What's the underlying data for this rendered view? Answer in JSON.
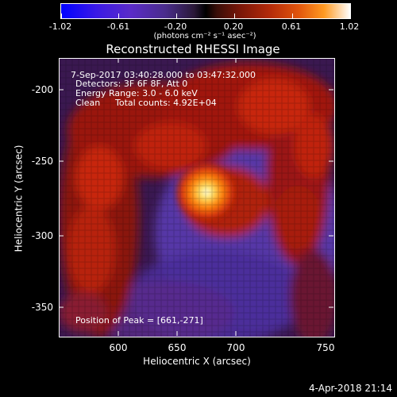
{
  "colorbar": {
    "tick_labels": [
      "-1.02",
      "-0.61",
      "-0.20",
      "0.20",
      "0.61",
      "1.02"
    ],
    "units_label": "(photons cm⁻² s⁻¹ asec⁻²)"
  },
  "plot": {
    "title": "Reconstructed RHESSI Image",
    "annotations": {
      "time_range": "7-Sep-2017 03:40:28.000 to 03:47:32.000",
      "detectors": "Detectors: 3F 6F 8F, Att 0",
      "energy_range": "Energy Range: 3.0 - 6.0 keV",
      "method": "Clean",
      "total_counts": "Total counts: 4.92E+04",
      "peak_position": "Position of Peak = [661,-271]"
    },
    "x_axis": {
      "title": "Heliocentric X (arcsec)",
      "tick_labels": [
        "600",
        "650",
        "700",
        "750"
      ]
    },
    "y_axis": {
      "title": "Heliocentric Y (arcsec)",
      "tick_labels": [
        "-200",
        "-250",
        "-300",
        "-350"
      ]
    }
  },
  "footer": {
    "timestamp": "4-Apr-2018 21:14"
  }
}
